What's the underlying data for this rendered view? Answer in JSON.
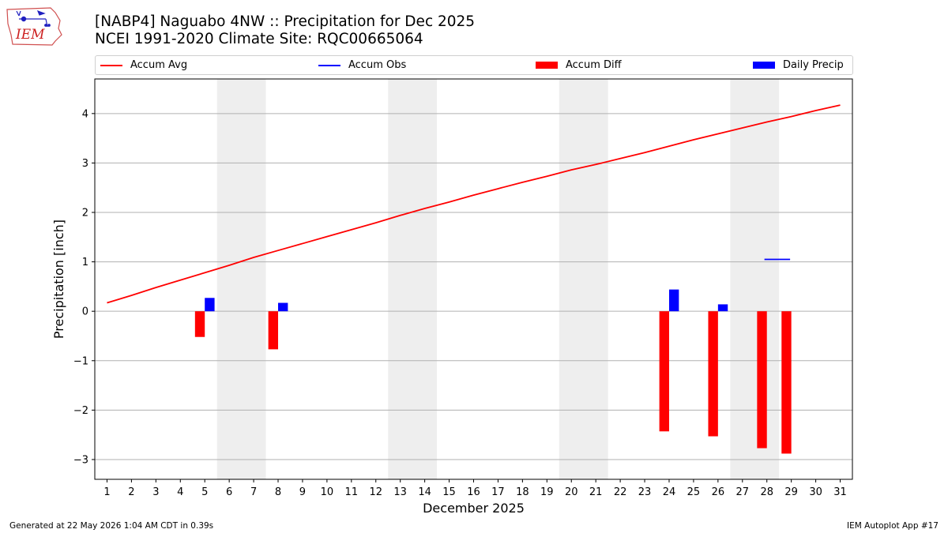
{
  "header": {
    "title_line1": "[NABP4] Naguabo 4NW :: Precipitation for Dec 2025",
    "title_line2": "NCEI 1991-2020 Climate Site: RQC00665064"
  },
  "logo": {
    "text": "IEM",
    "icon": "iem-iowa-logo-icon"
  },
  "legend": [
    {
      "label": "Accum Avg",
      "kind": "line",
      "color": "#ff0000"
    },
    {
      "label": "Accum Obs",
      "kind": "line",
      "color": "#0000ff"
    },
    {
      "label": "Accum Diff",
      "kind": "patch",
      "color": "#ff0000"
    },
    {
      "label": "Daily Precip",
      "kind": "patch",
      "color": "#0000ff"
    }
  ],
  "footer": {
    "generated": "Generated at 22 May 2026 1:04 AM CDT in 0.39s",
    "app": "IEM Autoplot App #17"
  },
  "chart_data": {
    "type": "bar",
    "xlabel": "December 2025",
    "ylabel": "Precipitation [inch]",
    "x": [
      1,
      2,
      3,
      4,
      5,
      6,
      7,
      8,
      9,
      10,
      11,
      12,
      13,
      14,
      15,
      16,
      17,
      18,
      19,
      20,
      21,
      22,
      23,
      24,
      25,
      26,
      27,
      28,
      29,
      30,
      31
    ],
    "xlim": [
      0.5,
      31.5
    ],
    "ylim": [
      -3.4,
      4.7
    ],
    "yticks": [
      -3,
      -2,
      -1,
      0,
      1,
      2,
      3,
      4
    ],
    "grid": "horizontal",
    "legend_position": "top",
    "weekend_shading": [
      [
        5.5,
        7.5
      ],
      [
        12.5,
        14.5
      ],
      [
        19.5,
        21.5
      ],
      [
        26.5,
        28.5
      ]
    ],
    "series": [
      {
        "name": "Accum Avg",
        "type": "line",
        "color": "#ff0000",
        "values": [
          0.17,
          0.32,
          0.48,
          0.63,
          0.78,
          0.93,
          1.09,
          1.23,
          1.37,
          1.51,
          1.65,
          1.79,
          1.94,
          2.08,
          2.21,
          2.35,
          2.48,
          2.61,
          2.73,
          2.86,
          2.97,
          3.09,
          3.21,
          3.34,
          3.47,
          3.59,
          3.71,
          3.83,
          3.94,
          4.06,
          4.17
        ]
      },
      {
        "name": "Accum Obs",
        "type": "line",
        "color": "#0000ff",
        "points": [
          [
            27.9,
            1.05
          ],
          [
            28.95,
            1.05
          ]
        ]
      },
      {
        "name": "Accum Diff",
        "type": "bar",
        "color": "#ff0000",
        "points": [
          [
            5,
            -0.52
          ],
          [
            8,
            -0.77
          ],
          [
            24,
            -2.43
          ],
          [
            26,
            -2.53
          ],
          [
            28,
            -2.77
          ],
          [
            29,
            -2.88
          ]
        ]
      },
      {
        "name": "Daily Precip",
        "type": "bar",
        "color": "#0000ff",
        "points": [
          [
            5,
            0.27
          ],
          [
            8,
            0.17
          ],
          [
            24,
            0.44
          ],
          [
            26,
            0.14
          ]
        ]
      }
    ]
  }
}
